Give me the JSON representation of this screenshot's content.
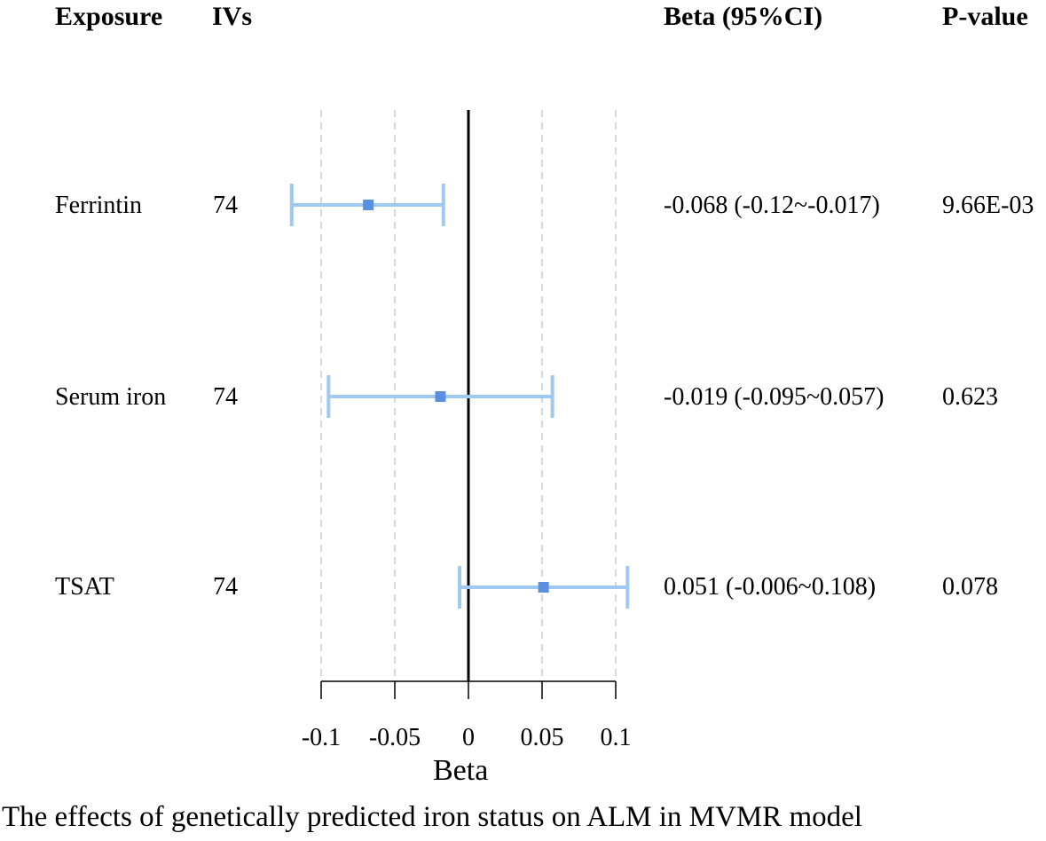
{
  "headers": {
    "exposure": "Exposure",
    "ivs": "IVs",
    "beta": "Beta (95%CI)",
    "pvalue": "P-value"
  },
  "rows": [
    {
      "exposure": "Ferrintin",
      "ivs": "74",
      "beta_ci": "-0.068 (-0.12~-0.017)",
      "p": "9.66E-03"
    },
    {
      "exposure": "Serum iron",
      "ivs": "74",
      "beta_ci": "-0.019 (-0.095~0.057)",
      "p": "0.623"
    },
    {
      "exposure": "TSAT",
      "ivs": "74",
      "beta_ci": "0.051 (-0.006~0.108)",
      "p": "0.078"
    }
  ],
  "axis": {
    "xlabel": "Beta"
  },
  "caption": "The effects of genetically predicted iron status on ALM in MVMR model",
  "colors": {
    "ci": "#9ec9f0",
    "point": "#5b8fe0",
    "grid": "#cccccc",
    "axis": "#000000"
  },
  "chart_data": {
    "type": "forest",
    "title": "",
    "xlabel": "Beta",
    "xlim": [
      -0.1,
      0.1
    ],
    "xticks": [
      -0.1,
      -0.05,
      0,
      0.05,
      0.1
    ],
    "xtick_labels": [
      "-0.1",
      "-0.05",
      "0",
      "0.05",
      "0.1"
    ],
    "reference_line": 0,
    "categories": [
      "Ferrintin",
      "Serum iron",
      "TSAT"
    ],
    "estimates": [
      -0.068,
      -0.019,
      0.051
    ],
    "ci_lower": [
      -0.12,
      -0.095,
      -0.006
    ],
    "ci_upper": [
      -0.017,
      0.057,
      0.108
    ],
    "grid": true
  }
}
